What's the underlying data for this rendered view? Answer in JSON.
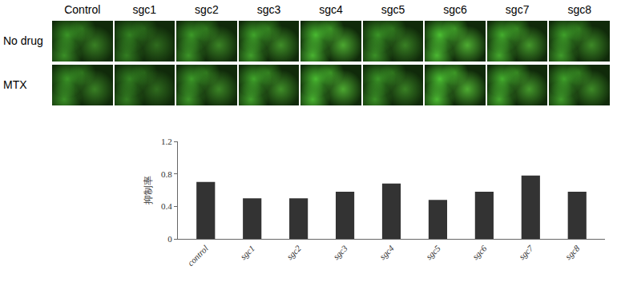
{
  "image_grid": {
    "columns": [
      "Control",
      "sgc1",
      "sgc2",
      "sgc3",
      "sgc4",
      "sgc5",
      "sgc6",
      "sgc7",
      "sgc8"
    ],
    "rows": [
      "No drug",
      "MTX"
    ]
  },
  "chart_data": {
    "type": "bar",
    "y_label": "抑制率",
    "categories": [
      "control",
      "sgc1",
      "sgc2",
      "sgc3",
      "sgc4",
      "sgc5",
      "sgc6",
      "sgc7",
      "sgc8"
    ],
    "values": [
      0.7,
      0.5,
      0.5,
      0.58,
      0.68,
      0.48,
      0.58,
      0.78,
      0.58
    ],
    "color": "#333333",
    "ylim": [
      0,
      1.2
    ],
    "yticks": [
      0,
      0.4,
      0.8,
      1.2
    ],
    "grid": false
  }
}
